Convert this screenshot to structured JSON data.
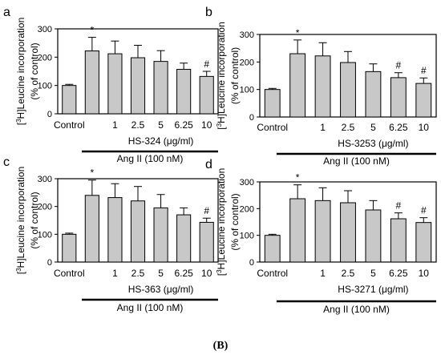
{
  "caption": "(B)",
  "chart_data": [
    {
      "panel_letter": "a",
      "type": "bar",
      "ylabel_prefix": "[",
      "ylabel_sup": "3",
      "ylabel_main": "H]Leucine incorporation",
      "ylabel_line2": "(% of control)",
      "categories": [
        "Control",
        "",
        "1",
        "2.5",
        "5",
        "6.25",
        "10"
      ],
      "values": [
        100,
        222,
        212,
        198,
        185,
        157,
        132
      ],
      "errors": [
        4,
        48,
        45,
        44,
        38,
        22,
        18
      ],
      "annotations": [
        "",
        "*",
        "",
        "",
        "",
        "",
        "#"
      ],
      "ylim": [
        0,
        300
      ],
      "yticks": [
        "0",
        "100",
        "200",
        "300"
      ],
      "treatment_label": "HS-324 (μg/ml)",
      "condition_label": "Ang II (100 nM)"
    },
    {
      "panel_letter": "b",
      "type": "bar",
      "ylabel_prefix": "[",
      "ylabel_sup": "3",
      "ylabel_main": "H]Leucine incorporation",
      "ylabel_line2": "(% of control)",
      "categories": [
        "Control",
        "",
        "1",
        "2.5",
        "5",
        "6.25",
        "10"
      ],
      "values": [
        100,
        230,
        222,
        198,
        165,
        143,
        122
      ],
      "errors": [
        4,
        50,
        48,
        40,
        28,
        18,
        20
      ],
      "annotations": [
        "",
        "*",
        "",
        "",
        "",
        "#",
        "#"
      ],
      "ylim": [
        0,
        300
      ],
      "yticks": [
        "0",
        "100",
        "200",
        "300"
      ],
      "treatment_label": "HS-3253 (μg/ml)",
      "condition_label": "Ang II (100 nM)"
    },
    {
      "panel_letter": "c",
      "type": "bar",
      "ylabel_prefix": "[",
      "ylabel_sup": "3",
      "ylabel_main": "H]Leucine incorporation",
      "ylabel_line2": "(% of control)",
      "categories": [
        "Control",
        "",
        "1",
        "2.5",
        "5",
        "6.25",
        "10"
      ],
      "values": [
        100,
        240,
        232,
        220,
        195,
        170,
        143
      ],
      "errors": [
        4,
        55,
        50,
        52,
        48,
        25,
        15
      ],
      "annotations": [
        "",
        "*",
        "",
        "",
        "",
        "",
        "#"
      ],
      "ylim": [
        0,
        300
      ],
      "yticks": [
        "0",
        "100",
        "200",
        "300"
      ],
      "treatment_label": "HS-363 (μg/ml)",
      "condition_label": "Ang II (100 nM)"
    },
    {
      "panel_letter": "d",
      "type": "bar",
      "ylabel_prefix": "[",
      "ylabel_sup": "3",
      "ylabel_main": "H]Leucine incorporation",
      "ylabel_line2": "(% of control)",
      "categories": [
        "Control",
        "",
        "1",
        "2.5",
        "5",
        "6.25",
        "10"
      ],
      "values": [
        100,
        237,
        230,
        222,
        195,
        162,
        148
      ],
      "errors": [
        4,
        52,
        48,
        45,
        35,
        22,
        18
      ],
      "annotations": [
        "",
        "*",
        "",
        "",
        "",
        "#",
        "#"
      ],
      "ylim": [
        0,
        300
      ],
      "yticks": [
        "0",
        "100",
        "200",
        "300"
      ],
      "treatment_label": "HS-3271 (μg/ml)",
      "condition_label": "Ang II (100 nM)"
    }
  ]
}
